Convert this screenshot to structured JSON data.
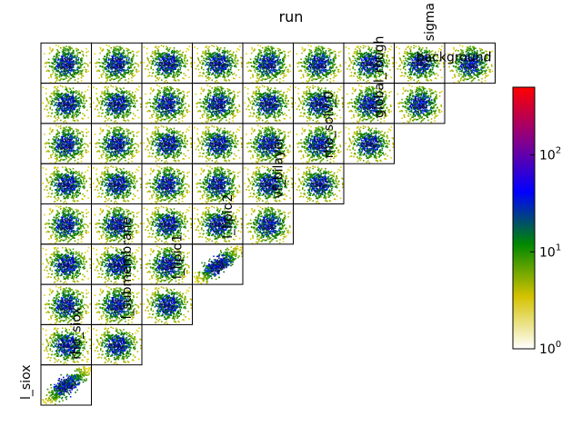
{
  "chart_data": {
    "type": "heatmap",
    "subtype": "corner-plot (lower-triangle 2D histograms)",
    "title": "run",
    "parameters": [
      "l_siox",
      "rho_siox",
      "l_submembrane",
      "l_lipid1",
      "l_lipid2",
      "vf_bilayer",
      "rho_solv_0",
      "global_rough",
      "sigma",
      "background"
    ],
    "density_pattern": "diffuse blobs; l_lipid1 vs l_lipid2 and l_siox vs rho_siox strongly correlated (diagonal band)",
    "colorbar": {
      "scale": "log",
      "range": [
        1,
        500
      ],
      "ticks": [
        1,
        10,
        100
      ],
      "tick_labels": [
        "10",
        "10",
        "10"
      ],
      "tick_exponents": [
        "0",
        "1",
        "2"
      ],
      "colors": [
        "#ffffff",
        "#d4c200",
        "#008800",
        "#0000ff",
        "#880088",
        "#ff0000"
      ]
    },
    "grid": false,
    "axes_ticks": "none"
  }
}
